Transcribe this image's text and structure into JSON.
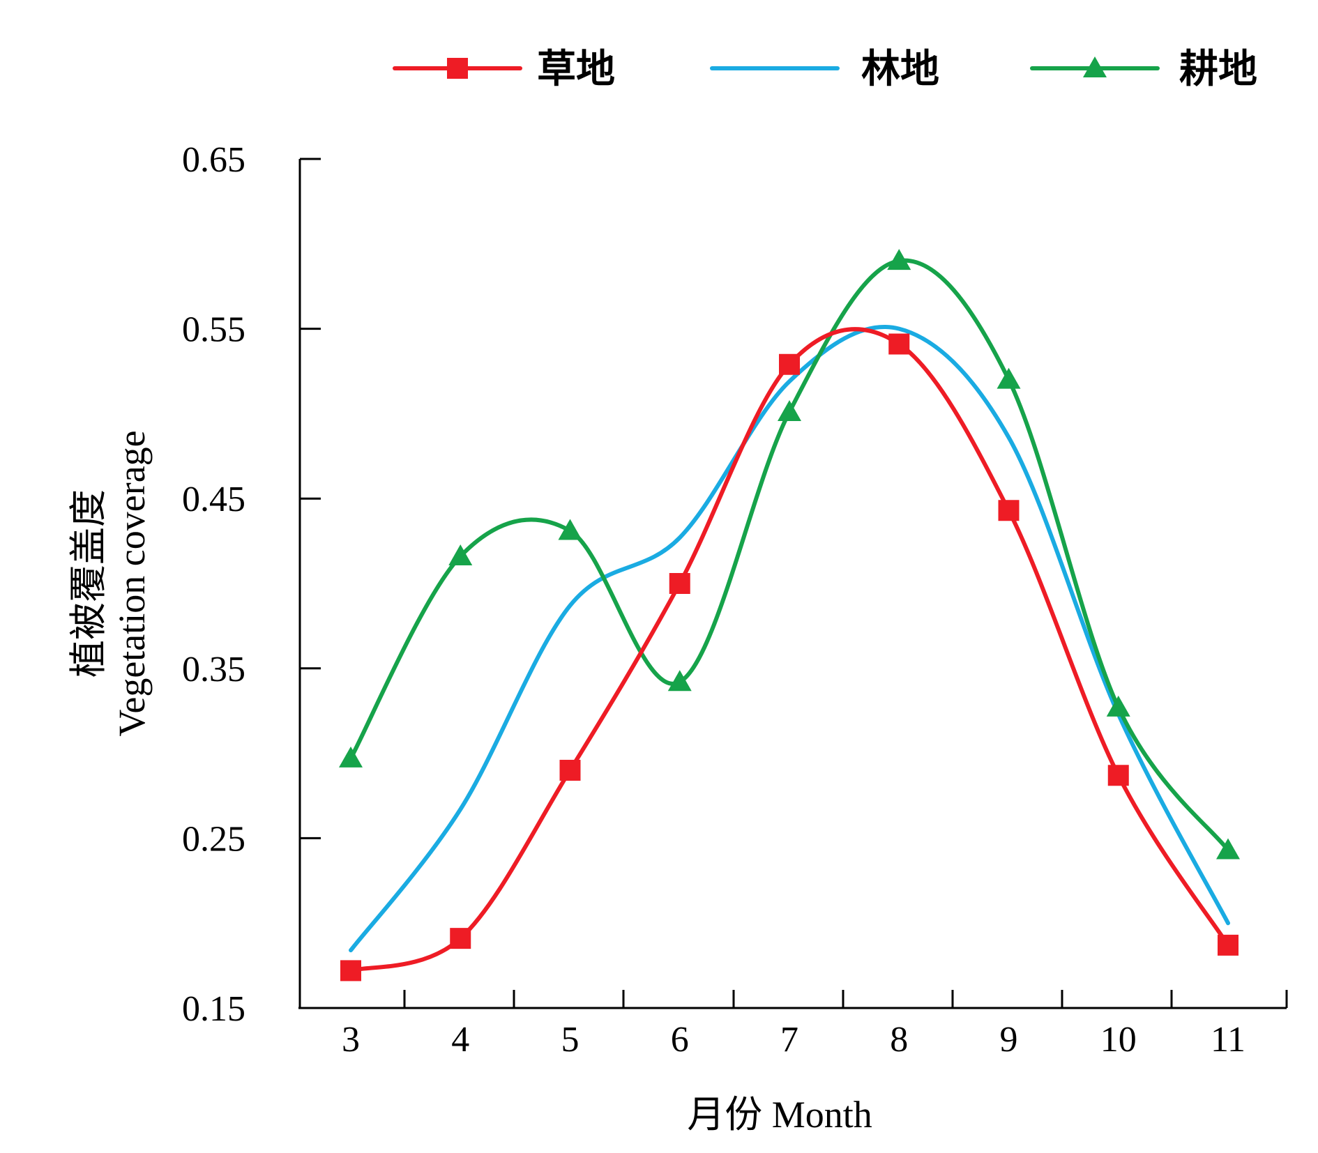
{
  "chart_data": {
    "type": "line",
    "x": [
      3,
      4,
      5,
      6,
      7,
      8,
      9,
      10,
      11
    ],
    "x_tick_labels": [
      "3",
      "4",
      "5",
      "6",
      "7",
      "8",
      "9",
      "10",
      "11"
    ],
    "ylim": [
      0.15,
      0.65
    ],
    "y_ticks": [
      0.15,
      0.25,
      0.35,
      0.45,
      0.55,
      0.65
    ],
    "y_tick_labels": [
      "0.15",
      "0.25",
      "0.35",
      "0.45",
      "0.55",
      "0.65"
    ],
    "xlabel": "月份 Month",
    "ylabel_cn": "植被覆盖度",
    "ylabel_en": "Vegetation coverage",
    "grid": false,
    "legend_position": "top",
    "series": [
      {
        "name": "草地",
        "color": "#ee1c25",
        "marker": "square",
        "values": [
          0.172,
          0.191,
          0.29,
          0.4,
          0.529,
          0.541,
          0.443,
          0.287,
          0.187
        ]
      },
      {
        "name": "林地",
        "color": "#1aabe2",
        "marker": "none",
        "values": [
          0.184,
          0.267,
          0.387,
          0.427,
          0.519,
          0.55,
          0.486,
          0.323,
          0.2
        ]
      },
      {
        "name": "耕地",
        "color": "#16a34a",
        "marker": "triangle",
        "values": [
          0.297,
          0.416,
          0.431,
          0.342,
          0.501,
          0.59,
          0.52,
          0.327,
          0.243
        ]
      }
    ]
  }
}
